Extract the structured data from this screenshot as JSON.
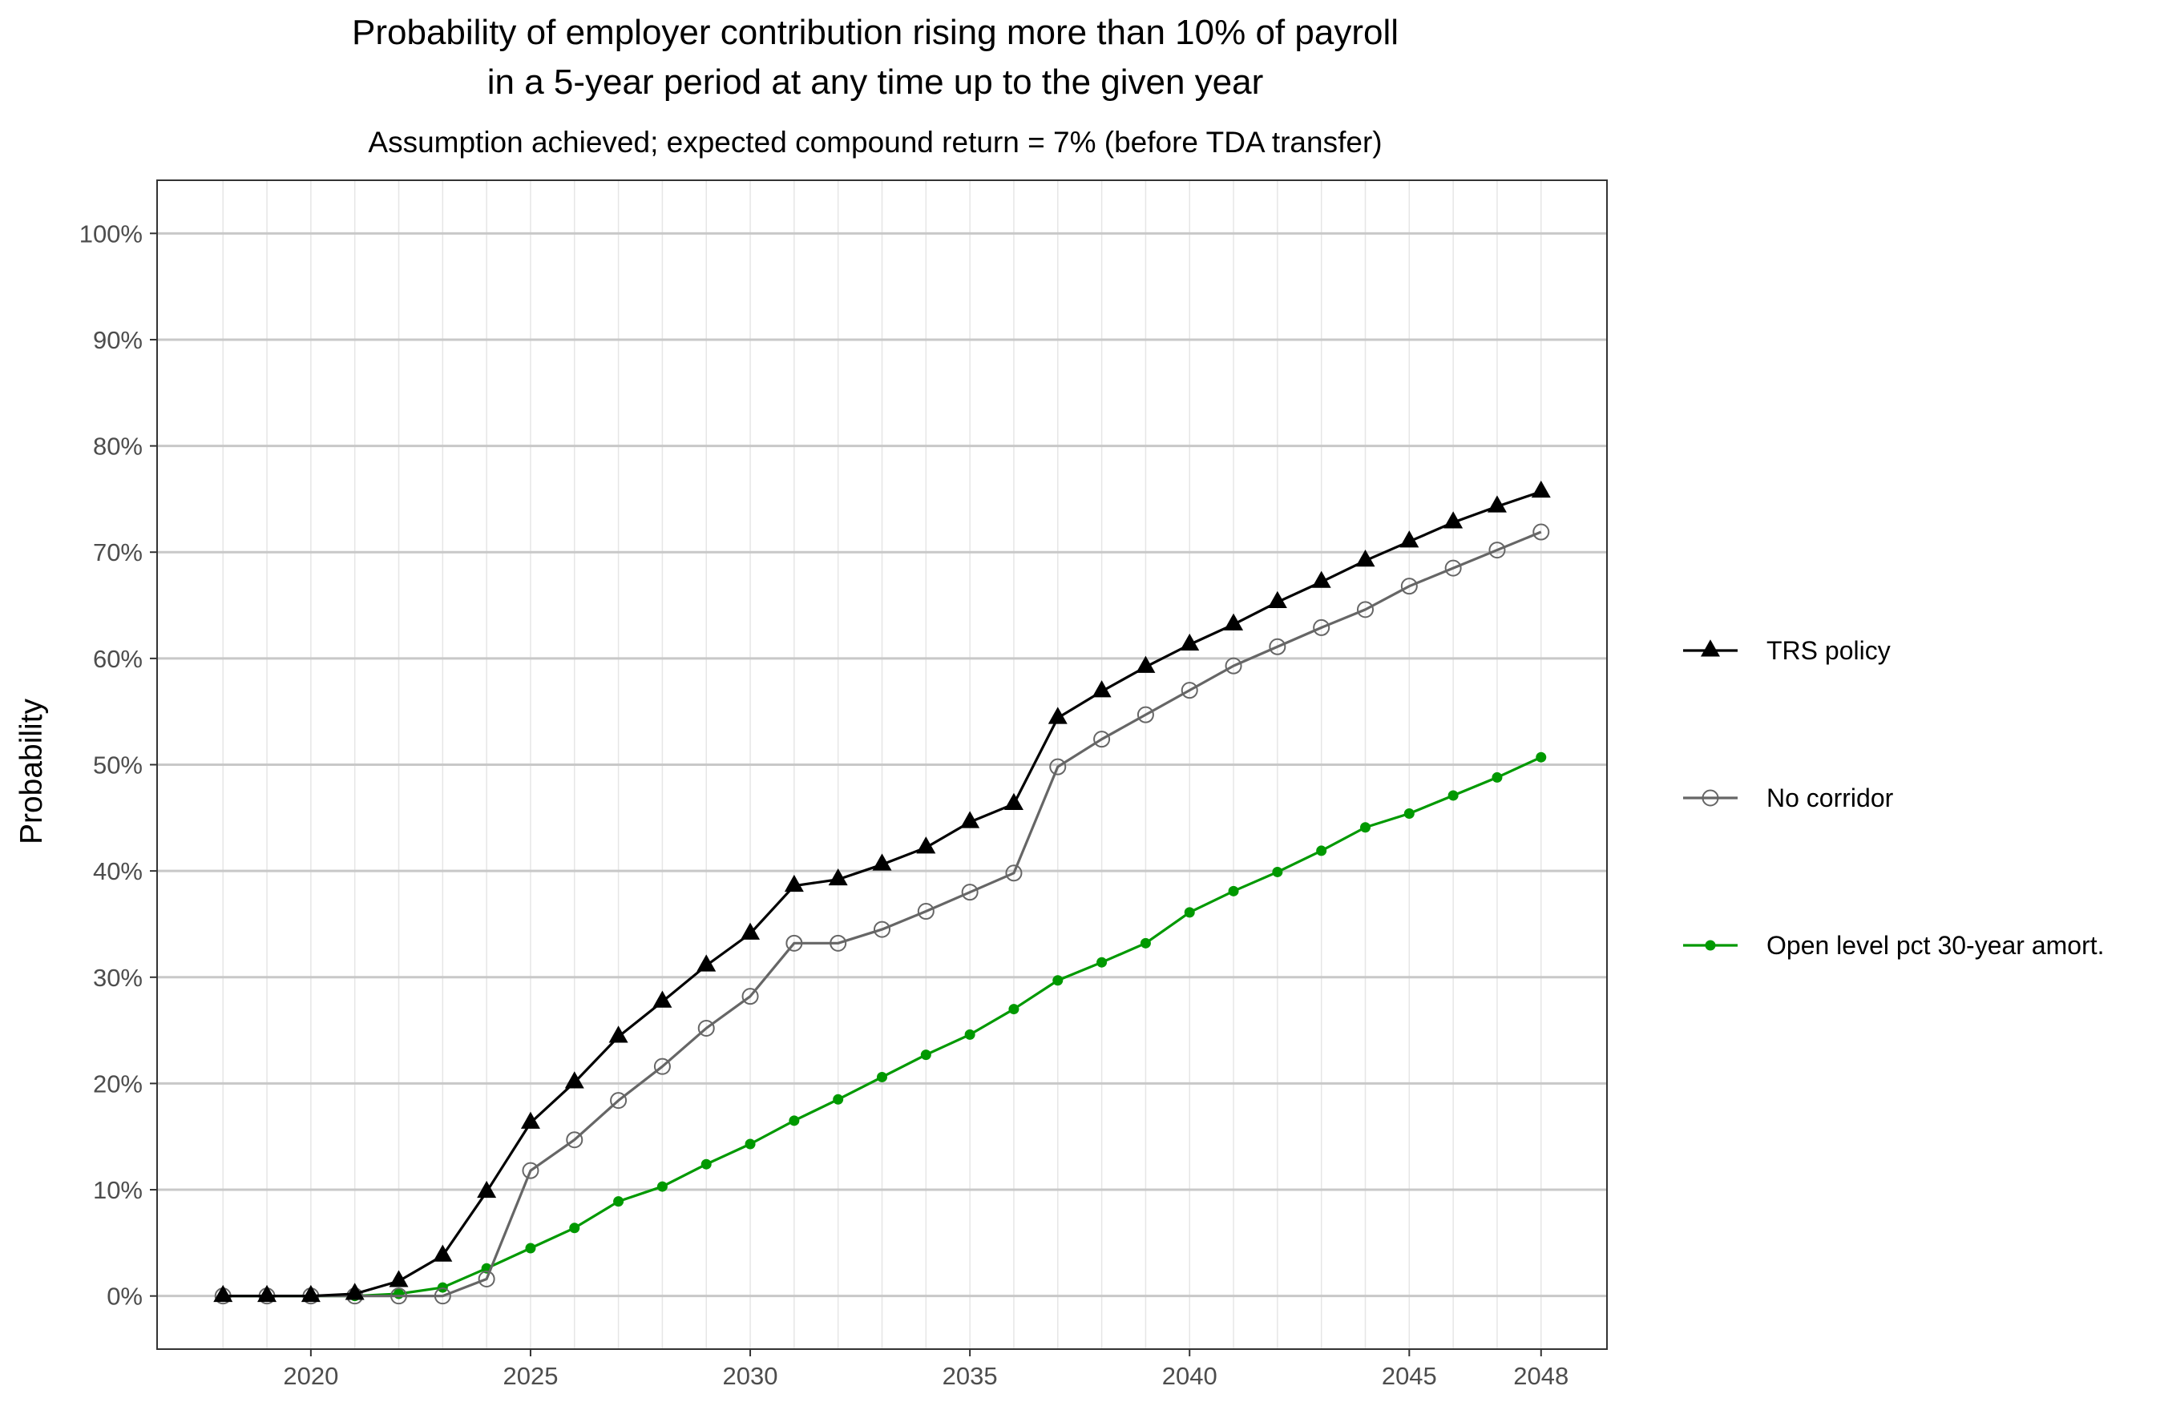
{
  "chart_data": {
    "type": "line",
    "title": "Probability of employer contribution rising more than 10% of payroll\nin a 5-year period at any time up to the given year",
    "title_lines": [
      "Probability of employer contribution rising more than 10% of payroll",
      "in a 5-year period at any time up to the given year"
    ],
    "subtitle": "Assumption achieved; expected compound return = 7% (before TDA transfer)",
    "xlabel": "",
    "ylabel": "Probability",
    "xlim": [
      2016.5,
      2049.5
    ],
    "ylim": [
      -0.05,
      1.05
    ],
    "x_ticks": [
      2020,
      2025,
      2030,
      2035,
      2040,
      2045,
      2048
    ],
    "x_tick_labels": [
      "2020",
      "2025",
      "2030",
      "2035",
      "2040",
      "2045",
      "2048"
    ],
    "y_ticks": [
      0,
      0.1,
      0.2,
      0.3,
      0.4,
      0.5,
      0.6,
      0.7,
      0.8,
      0.9,
      1.0
    ],
    "y_tick_labels": [
      "0%",
      "10%",
      "20%",
      "30%",
      "40%",
      "50%",
      "60%",
      "70%",
      "80%",
      "90%",
      "100%"
    ],
    "grid": true,
    "legend_position": "right",
    "x": [
      2018,
      2019,
      2020,
      2021,
      2022,
      2023,
      2024,
      2025,
      2026,
      2027,
      2028,
      2029,
      2030,
      2031,
      2032,
      2033,
      2034,
      2035,
      2036,
      2037,
      2038,
      2039,
      2040,
      2041,
      2042,
      2043,
      2044,
      2045,
      2046,
      2047,
      2048
    ],
    "series": [
      {
        "name": "TRS policy",
        "color": "#000000",
        "marker": "triangle",
        "values": [
          0.0,
          0.0,
          0.0,
          0.002,
          0.014,
          0.038,
          0.098,
          0.163,
          0.201,
          0.244,
          0.277,
          0.311,
          0.341,
          0.386,
          0.392,
          0.406,
          0.422,
          0.446,
          0.463,
          0.544,
          0.569,
          0.592,
          0.613,
          0.632,
          0.653,
          0.672,
          0.692,
          0.71,
          0.728,
          0.743,
          0.757
        ]
      },
      {
        "name": "No corridor",
        "color": "#666666",
        "marker": "open-circle",
        "values": [
          0.0,
          0.0,
          0.0,
          0.0,
          0.0,
          0.0,
          0.016,
          0.118,
          0.147,
          0.184,
          0.216,
          0.252,
          0.282,
          0.332,
          0.332,
          0.345,
          0.362,
          0.38,
          0.398,
          0.498,
          0.524,
          0.547,
          0.57,
          0.593,
          0.611,
          0.629,
          0.646,
          0.668,
          0.685,
          0.702,
          0.719
        ]
      },
      {
        "name": "Open level pct 30-year amort.",
        "color": "#009900",
        "marker": "dot",
        "values": [
          0.0,
          0.0,
          0.0,
          0.0,
          0.002,
          0.008,
          0.026,
          0.045,
          0.064,
          0.089,
          0.103,
          0.124,
          0.143,
          0.165,
          0.185,
          0.206,
          0.227,
          0.246,
          0.27,
          0.297,
          0.314,
          0.332,
          0.361,
          0.381,
          0.399,
          0.419,
          0.441,
          0.454,
          0.471,
          0.488,
          0.507
        ]
      }
    ]
  }
}
